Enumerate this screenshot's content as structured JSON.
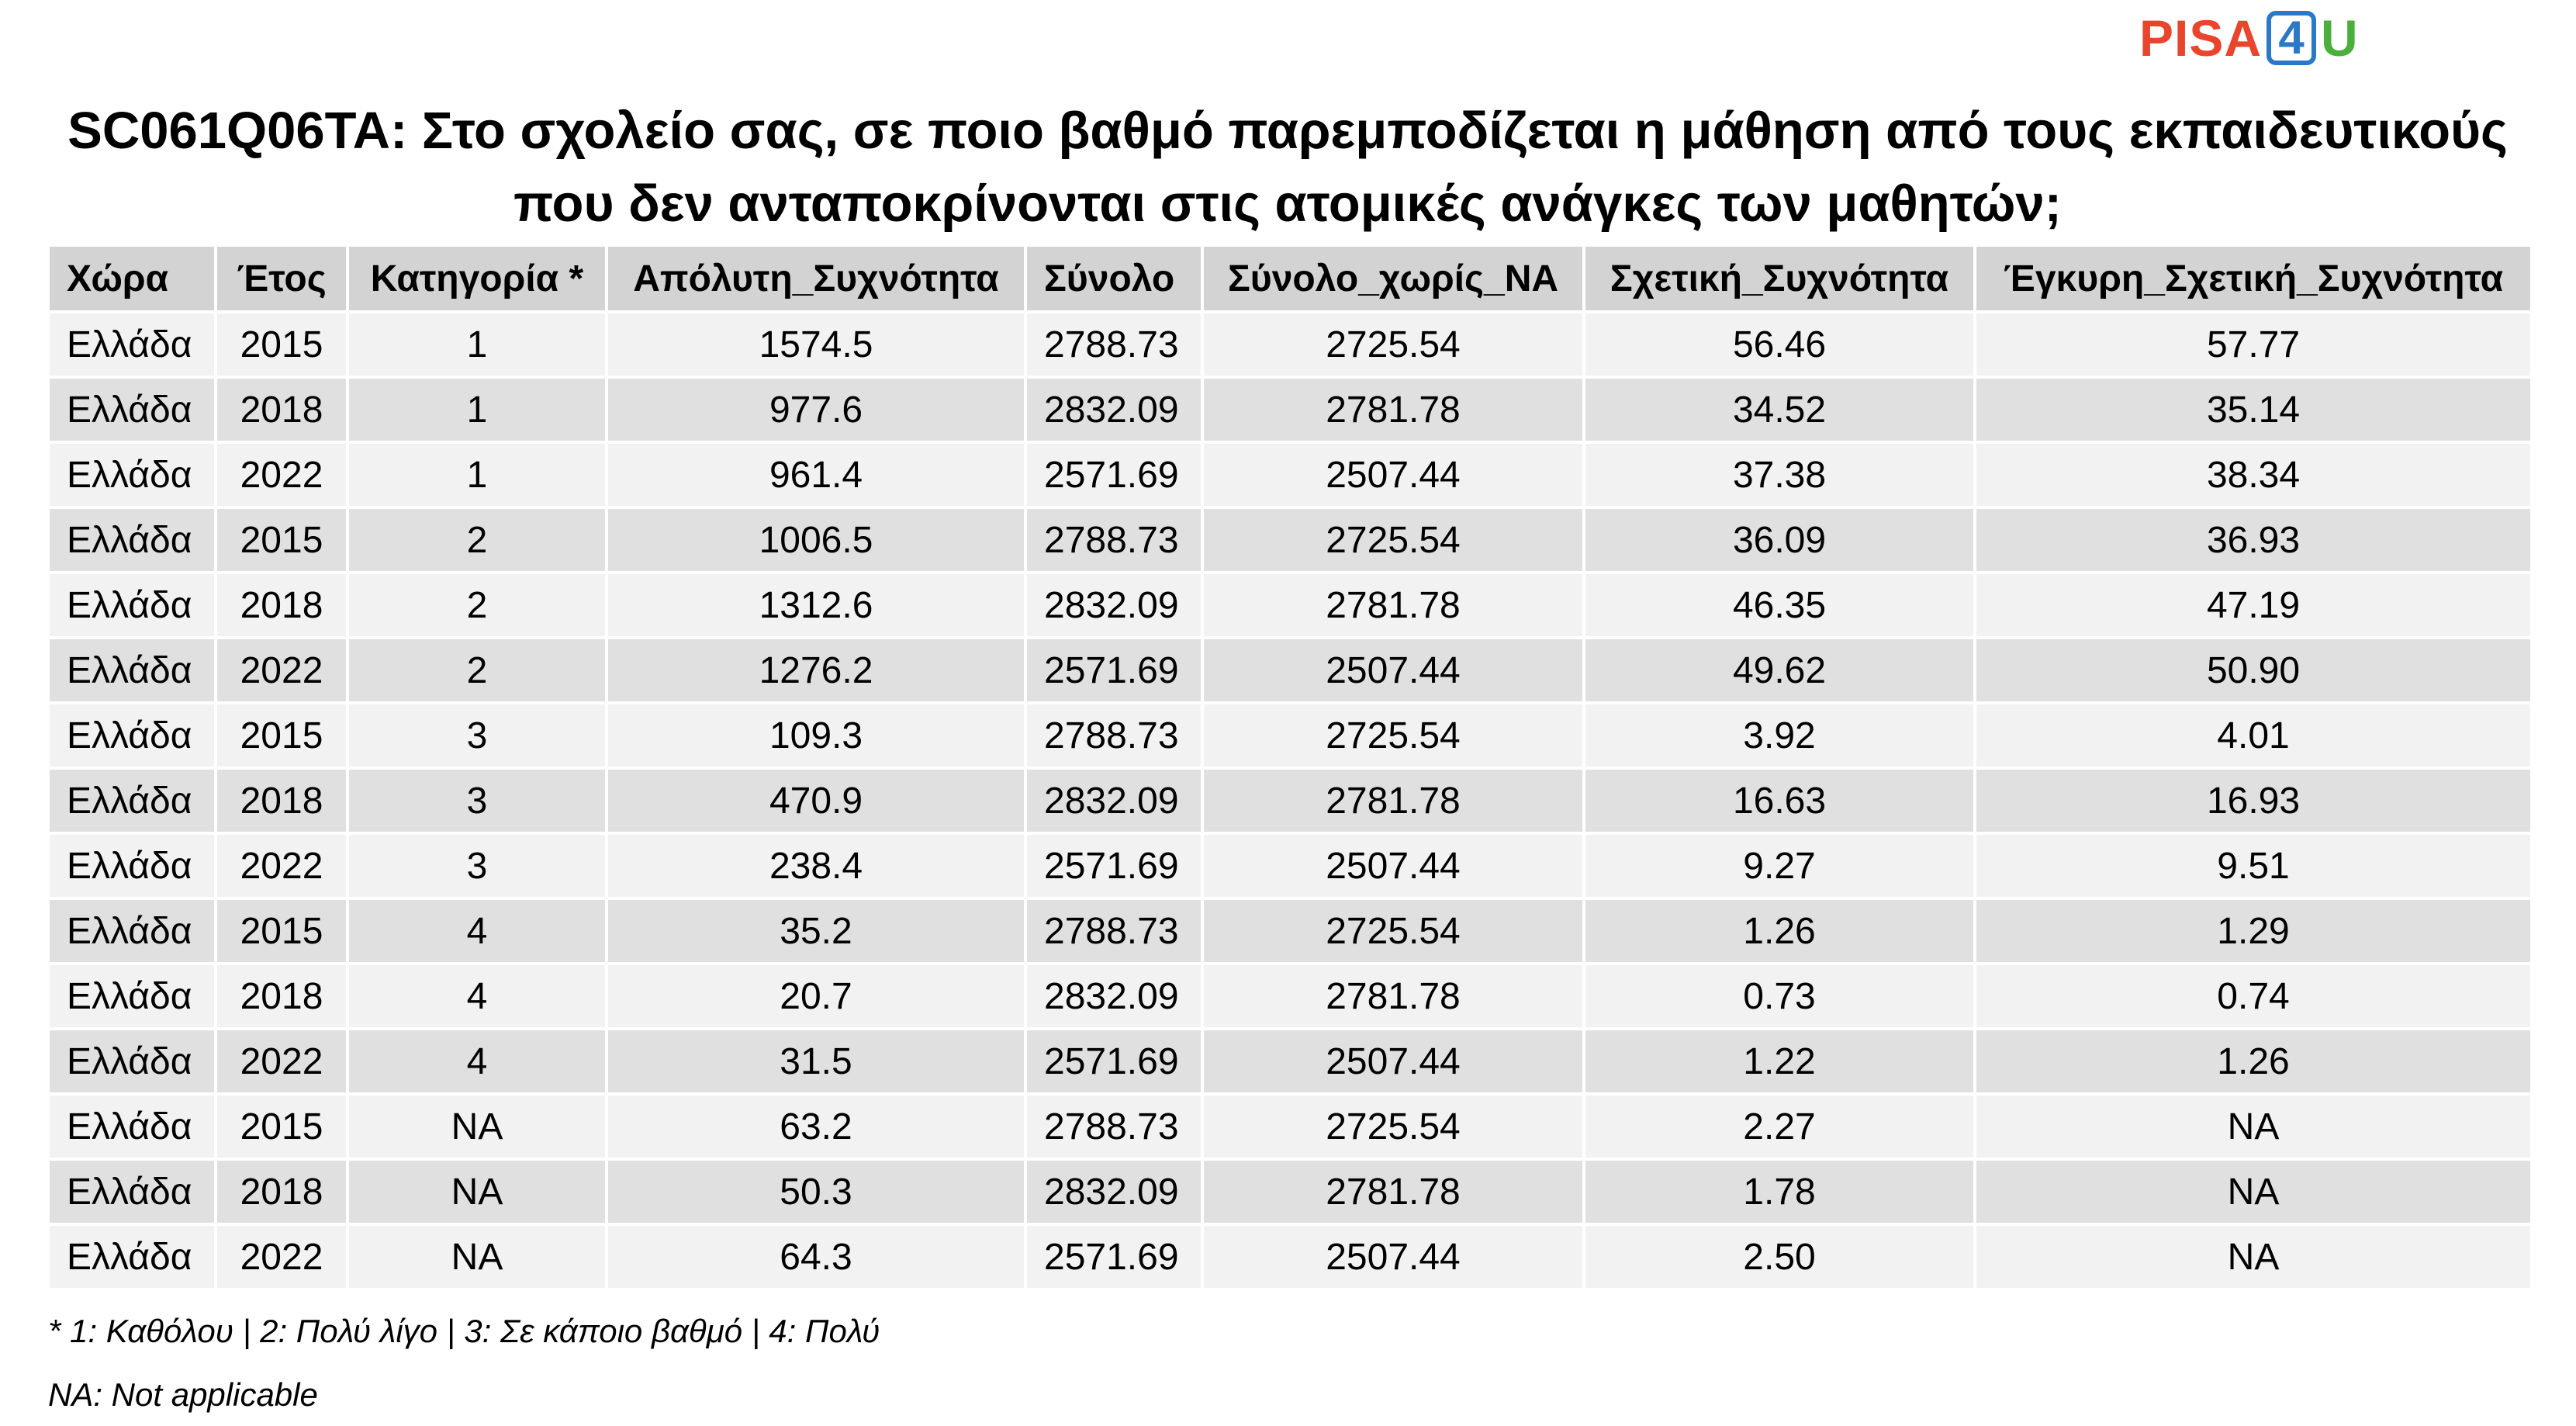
{
  "logo": {
    "part1": "PISA",
    "part2": "4",
    "part3": "U"
  },
  "title": "SC061Q06TA: Στο σχολείο σας, σε ποιο βαθμό παρεμποδίζεται η μάθηση από τους εκπαιδευτικούς που δεν ανταποκρίνονται στις ατομικές ανάγκες των μαθητών;",
  "table": {
    "headers": [
      "Χώρα",
      "Έτος",
      "Κατηγορία *",
      "Απόλυτη_Συχνότητα",
      "Σύνολο",
      "Σύνολο_χωρίς_NA",
      "Σχετική_Συχνότητα",
      "Έγκυρη_Σχετική_Συχνότητα"
    ],
    "rows": [
      [
        "Ελλάδα",
        "2015",
        "1",
        "1574.5",
        "2788.73",
        "2725.54",
        "56.46",
        "57.77"
      ],
      [
        "Ελλάδα",
        "2018",
        "1",
        "977.6",
        "2832.09",
        "2781.78",
        "34.52",
        "35.14"
      ],
      [
        "Ελλάδα",
        "2022",
        "1",
        "961.4",
        "2571.69",
        "2507.44",
        "37.38",
        "38.34"
      ],
      [
        "Ελλάδα",
        "2015",
        "2",
        "1006.5",
        "2788.73",
        "2725.54",
        "36.09",
        "36.93"
      ],
      [
        "Ελλάδα",
        "2018",
        "2",
        "1312.6",
        "2832.09",
        "2781.78",
        "46.35",
        "47.19"
      ],
      [
        "Ελλάδα",
        "2022",
        "2",
        "1276.2",
        "2571.69",
        "2507.44",
        "49.62",
        "50.90"
      ],
      [
        "Ελλάδα",
        "2015",
        "3",
        "109.3",
        "2788.73",
        "2725.54",
        "3.92",
        "4.01"
      ],
      [
        "Ελλάδα",
        "2018",
        "3",
        "470.9",
        "2832.09",
        "2781.78",
        "16.63",
        "16.93"
      ],
      [
        "Ελλάδα",
        "2022",
        "3",
        "238.4",
        "2571.69",
        "2507.44",
        "9.27",
        "9.51"
      ],
      [
        "Ελλάδα",
        "2015",
        "4",
        "35.2",
        "2788.73",
        "2725.54",
        "1.26",
        "1.29"
      ],
      [
        "Ελλάδα",
        "2018",
        "4",
        "20.7",
        "2832.09",
        "2781.78",
        "0.73",
        "0.74"
      ],
      [
        "Ελλάδα",
        "2022",
        "4",
        "31.5",
        "2571.69",
        "2507.44",
        "1.22",
        "1.26"
      ],
      [
        "Ελλάδα",
        "2015",
        "NA",
        "63.2",
        "2788.73",
        "2725.54",
        "2.27",
        "NA"
      ],
      [
        "Ελλάδα",
        "2018",
        "NA",
        "50.3",
        "2832.09",
        "2781.78",
        "1.78",
        "NA"
      ],
      [
        "Ελλάδα",
        "2022",
        "NA",
        "64.3",
        "2571.69",
        "2507.44",
        "2.50",
        "NA"
      ]
    ]
  },
  "footnotes": {
    "categories": "* 1: Καθόλου | 2: Πολύ λίγο | 3: Σε κάποιο βαθμό | 4: Πολύ",
    "na": "NA: Not applicable"
  },
  "colors": {
    "header_bg": "#d3d3d3",
    "row_light": "#f2f2f2",
    "row_dark": "#e0e0e0",
    "logo_red": "#e8452c",
    "logo_blue": "#2b78c6",
    "logo_green": "#4caf3d"
  }
}
